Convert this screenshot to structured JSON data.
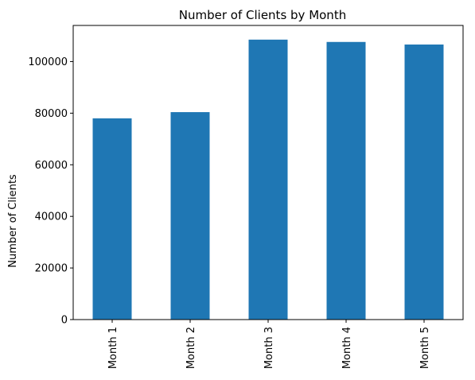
{
  "chart_data": {
    "type": "bar",
    "title": "Number of Clients by Month",
    "xlabel": "",
    "ylabel": "Number of Clients",
    "categories": [
      "Month 1",
      "Month 2",
      "Month 3",
      "Month 4",
      "Month 5"
    ],
    "values": [
      78000,
      80400,
      108500,
      107600,
      106600
    ],
    "ylim": [
      0,
      114000
    ],
    "yticks": [
      0,
      20000,
      40000,
      60000,
      80000,
      100000
    ],
    "ytick_labels": [
      "0",
      "20000",
      "40000",
      "60000",
      "80000",
      "100000"
    ],
    "bar_color": "#1f77b4",
    "grid": false,
    "legend": "none"
  }
}
